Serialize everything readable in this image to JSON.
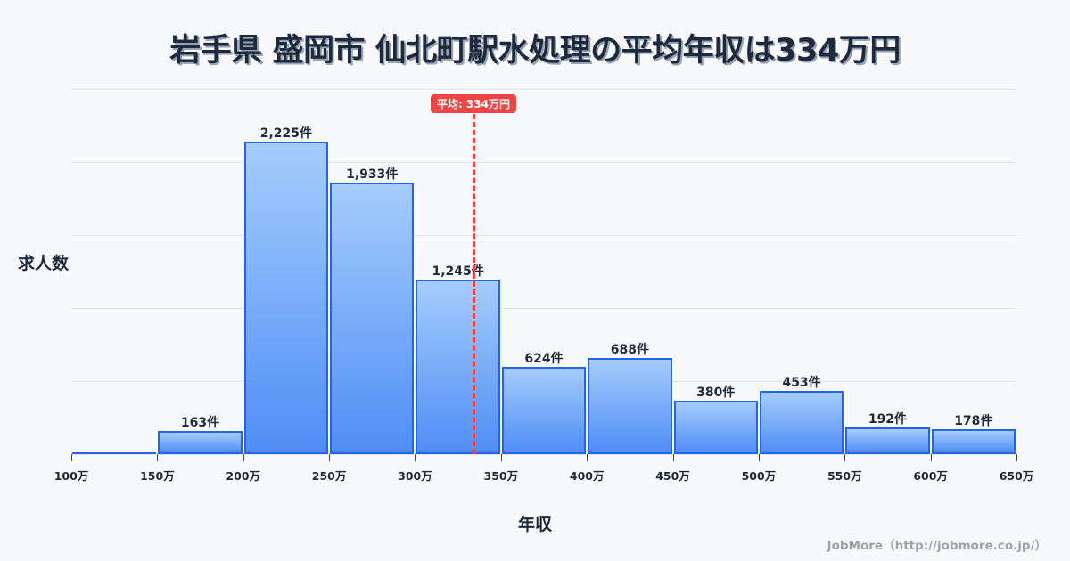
{
  "title": "岩手県 盛岡市 仙北町駅水処理の平均年収は334万円",
  "y_axis_label": "求人数",
  "x_axis_label": "年収",
  "credit": "JobMore（http://jobmore.co.jp/）",
  "average": {
    "label": "平均: 334万円",
    "value": 334,
    "color": "#ef4444"
  },
  "colors": {
    "bar_fill_top": "#a5cdfc",
    "bar_fill_bottom": "#4f8ef6",
    "bar_border": "#2563eb"
  },
  "chart_data": {
    "type": "bar",
    "title": "岩手県 盛岡市 仙北町駅水処理の平均年収は334万円",
    "xlabel": "年収",
    "ylabel": "求人数",
    "bin_edges": [
      100,
      150,
      200,
      250,
      300,
      350,
      400,
      450,
      500,
      550,
      600,
      650
    ],
    "tick_labels": [
      "100万",
      "150万",
      "200万",
      "250万",
      "300万",
      "350万",
      "400万",
      "450万",
      "500万",
      "550万",
      "600万",
      "650万"
    ],
    "categories": [
      "100-150万",
      "150-200万",
      "200-250万",
      "250-300万",
      "300-350万",
      "350-400万",
      "400-450万",
      "450-500万",
      "500-550万",
      "550-600万",
      "600-650万"
    ],
    "values": [
      0,
      163,
      2225,
      1933,
      1245,
      624,
      688,
      380,
      453,
      192,
      178
    ],
    "value_labels": [
      "",
      "163件",
      "2,225件",
      "1,933件",
      "1,245件",
      "624件",
      "688件",
      "380件",
      "453件",
      "192件",
      "178件"
    ],
    "annotations": [
      {
        "type": "vline",
        "x": 334,
        "label": "平均: 334万円"
      }
    ],
    "ylim": [
      0,
      2600
    ],
    "grid": true,
    "legend": false
  }
}
